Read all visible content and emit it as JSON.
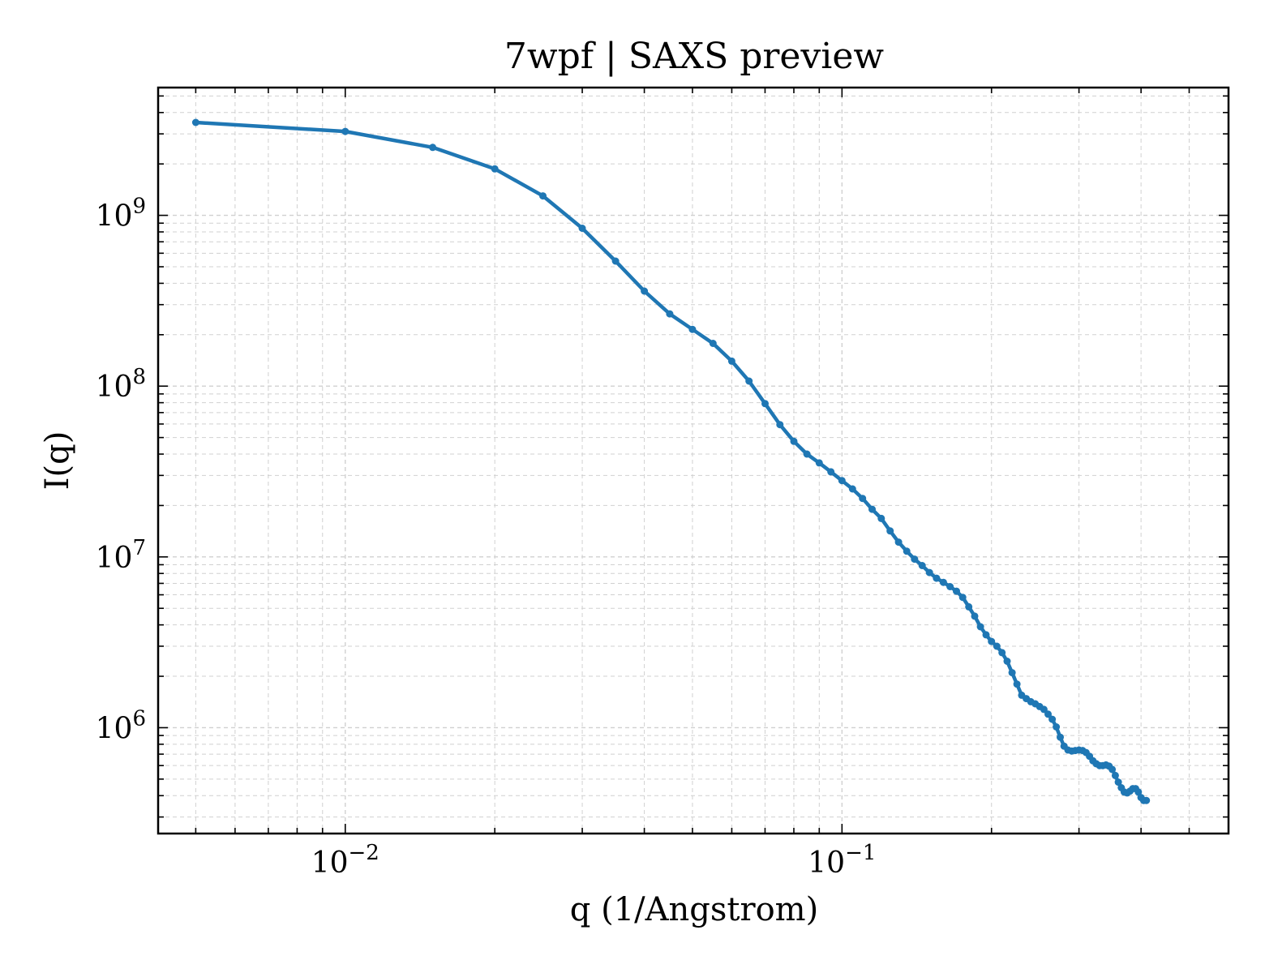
{
  "chart_data": {
    "type": "line",
    "title": "7wpf | SAXS preview",
    "xlabel": "q (1/Angstrom)",
    "ylabel": "I(q)",
    "xscale": "log",
    "yscale": "log",
    "xlim": [
      0.0042,
      0.6
    ],
    "ylim": [
      240000,
      5600000000
    ],
    "grid": true,
    "legend": "none",
    "x_ticks": [
      {
        "value": 0.01,
        "base": "10",
        "exp": "−2"
      },
      {
        "value": 0.1,
        "base": "10",
        "exp": "−1"
      }
    ],
    "y_ticks": [
      {
        "value": 1000000,
        "base": "10",
        "exp": "6"
      },
      {
        "value": 10000000,
        "base": "10",
        "exp": "7"
      },
      {
        "value": 100000000,
        "base": "10",
        "exp": "8"
      },
      {
        "value": 1000000000,
        "base": "10",
        "exp": "9"
      }
    ],
    "series": [
      {
        "color": "#1f77b4",
        "points": [
          [
            0.005,
            3500000000
          ],
          [
            0.01,
            3100000000
          ],
          [
            0.015,
            2500000000
          ],
          [
            0.02,
            1870000000
          ],
          [
            0.025,
            1300000000
          ],
          [
            0.03,
            840000000
          ],
          [
            0.035,
            540000000
          ],
          [
            0.04,
            360000000
          ],
          [
            0.045,
            265000000
          ],
          [
            0.05,
            215000000
          ],
          [
            0.055,
            178000000
          ],
          [
            0.06,
            140000000
          ],
          [
            0.065,
            107000000
          ],
          [
            0.07,
            79000000
          ],
          [
            0.075,
            59500000
          ],
          [
            0.08,
            47500000
          ],
          [
            0.085,
            40000000
          ],
          [
            0.09,
            35500000
          ],
          [
            0.095,
            31500000
          ],
          [
            0.1,
            28000000
          ],
          [
            0.105,
            25000000
          ],
          [
            0.11,
            22000000
          ],
          [
            0.115,
            19000000
          ],
          [
            0.12,
            16800000
          ],
          [
            0.125,
            14200000
          ],
          [
            0.13,
            12200000
          ],
          [
            0.135,
            10800000
          ],
          [
            0.14,
            9700000
          ],
          [
            0.145,
            8900000
          ],
          [
            0.15,
            8100000
          ],
          [
            0.155,
            7500000
          ],
          [
            0.16,
            7100000
          ],
          [
            0.165,
            6700000
          ],
          [
            0.17,
            6300000
          ],
          [
            0.175,
            5800000
          ],
          [
            0.18,
            5100000
          ],
          [
            0.185,
            4500000
          ],
          [
            0.19,
            3900000
          ],
          [
            0.195,
            3500000
          ],
          [
            0.2,
            3200000
          ],
          [
            0.205,
            3000000
          ],
          [
            0.21,
            2750000
          ],
          [
            0.215,
            2450000
          ],
          [
            0.22,
            2100000
          ],
          [
            0.225,
            1800000
          ],
          [
            0.23,
            1550000
          ],
          [
            0.235,
            1480000
          ],
          [
            0.24,
            1420000
          ],
          [
            0.245,
            1380000
          ],
          [
            0.25,
            1330000
          ],
          [
            0.255,
            1280000
          ],
          [
            0.26,
            1200000
          ],
          [
            0.265,
            1120000
          ],
          [
            0.27,
            1010000
          ],
          [
            0.275,
            880000
          ],
          [
            0.28,
            780000
          ],
          [
            0.285,
            740000
          ],
          [
            0.29,
            730000
          ],
          [
            0.295,
            735000
          ],
          [
            0.3,
            740000
          ],
          [
            0.305,
            735000
          ],
          [
            0.31,
            715000
          ],
          [
            0.315,
            680000
          ],
          [
            0.32,
            640000
          ],
          [
            0.325,
            615000
          ],
          [
            0.33,
            600000
          ],
          [
            0.335,
            600000
          ],
          [
            0.34,
            605000
          ],
          [
            0.345,
            595000
          ],
          [
            0.35,
            570000
          ],
          [
            0.355,
            525000
          ],
          [
            0.36,
            480000
          ],
          [
            0.365,
            445000
          ],
          [
            0.37,
            420000
          ],
          [
            0.375,
            415000
          ],
          [
            0.38,
            425000
          ],
          [
            0.385,
            440000
          ],
          [
            0.39,
            440000
          ],
          [
            0.395,
            420000
          ],
          [
            0.4,
            390000
          ],
          [
            0.405,
            375000
          ],
          [
            0.41,
            375000
          ]
        ]
      }
    ]
  }
}
